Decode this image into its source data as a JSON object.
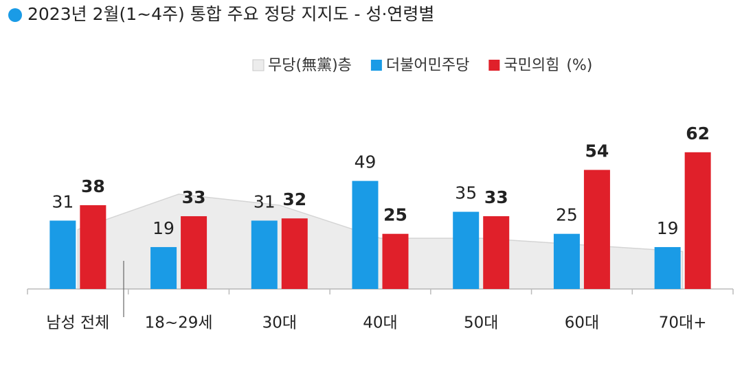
{
  "chart_data": {
    "type": "bar",
    "title": "2023년 2월(1~4주) 통합 주요 정당 지지도 - 성·연령별",
    "unit": "(%)",
    "categories": [
      "남성 전체",
      "18~29세",
      "30대",
      "40대",
      "50대",
      "60대",
      "70대+"
    ],
    "ylim": [
      0,
      80
    ],
    "series": [
      {
        "name": "무당(無黨)층",
        "type": "area",
        "color": "#ececec",
        "values": [
          27,
          43,
          38,
          23,
          23,
          20,
          17
        ]
      },
      {
        "name": "더불어민주당",
        "type": "bar",
        "color": "#1a9be6",
        "label_color": "#222222",
        "values": [
          31,
          19,
          31,
          49,
          35,
          25,
          19
        ]
      },
      {
        "name": "국민의힘",
        "type": "bar",
        "color": "#e0202a",
        "label_color": "#d23a3a",
        "values": [
          38,
          33,
          32,
          25,
          33,
          54,
          62
        ]
      }
    ]
  }
}
